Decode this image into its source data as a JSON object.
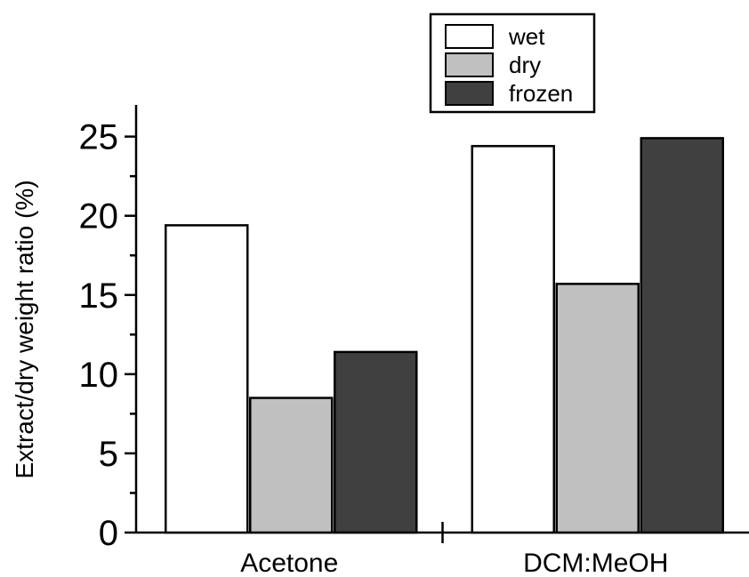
{
  "chart_data": {
    "type": "bar",
    "categories": [
      "Acetone",
      "DCM:MeOH"
    ],
    "series": [
      {
        "name": "wet",
        "values": [
          19.4,
          24.4
        ],
        "color": "#ffffff"
      },
      {
        "name": "dry",
        "values": [
          8.5,
          15.7
        ],
        "color": "#c0c0c0"
      },
      {
        "name": "frozen",
        "values": [
          11.4,
          24.9
        ],
        "color": "#404040"
      }
    ],
    "ylabel": "Extract/dry weight ratio (%)",
    "ylim": [
      0,
      27
    ],
    "yticks": [
      0,
      5,
      10,
      15,
      20,
      25
    ],
    "grid": false,
    "legend": "top-right"
  }
}
